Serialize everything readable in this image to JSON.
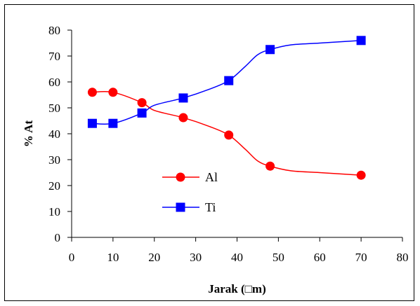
{
  "chart_data": {
    "type": "line",
    "title": "",
    "xlabel": "Jarak (□m)",
    "ylabel": "% At",
    "xlim": [
      0,
      80
    ],
    "ylim": [
      0,
      80
    ],
    "x_ticks": [
      "0",
      "10",
      "20",
      "30",
      "40",
      "50",
      "60",
      "70",
      "80"
    ],
    "y_ticks": [
      "0",
      "10",
      "20",
      "30",
      "40",
      "50",
      "60",
      "70",
      "80"
    ],
    "grid": false,
    "legend_position": "center-left",
    "series": [
      {
        "name": "Al",
        "color": "#ff0000",
        "marker": "circle",
        "x": [
          5,
          10,
          17,
          27,
          38,
          48,
          70
        ],
        "y": [
          56,
          56,
          52,
          46.2,
          39.5,
          27.5,
          24
        ],
        "curve": [
          [
            5,
            56
          ],
          [
            10,
            56
          ],
          [
            17,
            52
          ],
          [
            20,
            49
          ],
          [
            27,
            46.2
          ],
          [
            33,
            43
          ],
          [
            38,
            39.5
          ],
          [
            42,
            34
          ],
          [
            45,
            29.5
          ],
          [
            48,
            27.5
          ],
          [
            53,
            25.7
          ],
          [
            60,
            25
          ],
          [
            70,
            24
          ]
        ]
      },
      {
        "name": "Ti",
        "color": "#0000ff",
        "marker": "square",
        "x": [
          5,
          10,
          17,
          27,
          38,
          48,
          70
        ],
        "y": [
          44,
          44,
          48,
          53.8,
          60.5,
          72.5,
          76
        ],
        "curve": [
          [
            5,
            44
          ],
          [
            10,
            44
          ],
          [
            17,
            48
          ],
          [
            20,
            51
          ],
          [
            27,
            53.8
          ],
          [
            33,
            57
          ],
          [
            38,
            60.5
          ],
          [
            42,
            66
          ],
          [
            45,
            70.5
          ],
          [
            48,
            72.5
          ],
          [
            53,
            74.3
          ],
          [
            60,
            75
          ],
          [
            70,
            76
          ]
        ]
      }
    ]
  }
}
